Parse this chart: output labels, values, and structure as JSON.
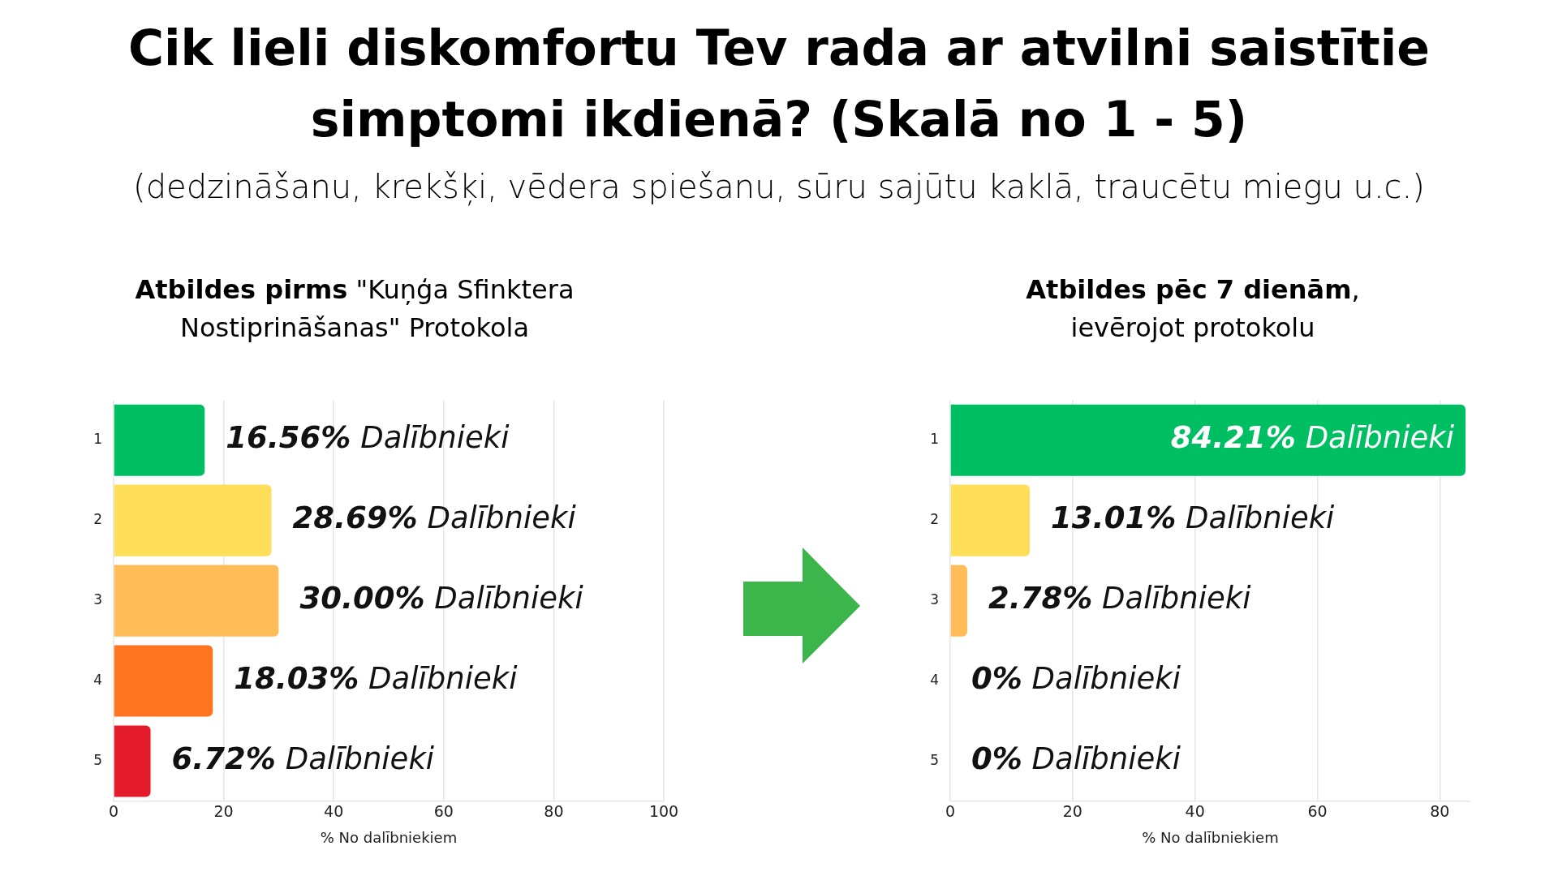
{
  "chart_data": [
    {
      "type": "bar",
      "orientation": "horizontal",
      "title": "Cik lieli diskomfortu Tev rada ar atvilni saistītie simptomi ikdienā? (Skalā no 1 - 5)",
      "subtitle": "(dedzināšanu, krekšķi, vēdera spiešanu, sūru sajūtu kaklā, traucētu miegu u.c.)",
      "annotations": [
        "Atbildes pirms",
        "\"Kuņģa Sfinktera",
        "Nostiprināšanas\" Protokola"
      ],
      "xlabel": "% No dalībniekiem",
      "categories": [
        "1",
        "2",
        "3",
        "4",
        "5"
      ],
      "values": [
        16.56,
        28.69,
        30.0,
        18.03,
        6.72
      ],
      "colors": [
        "#00bf63",
        "#ffde59",
        "#ffbd59",
        "#ff751f",
        "#e31b2b"
      ],
      "value_labels": [
        "16.56% Dalībnieki",
        "28.69% Dalībnieki",
        "30.00% Dalībnieki",
        "18.03% Dalībnieki",
        "6.72% Dalībnieki"
      ],
      "xlim": [
        0,
        100
      ],
      "xticks": [
        0,
        20,
        40,
        60,
        80,
        100
      ],
      "grid": "x"
    },
    {
      "type": "bar",
      "orientation": "horizontal",
      "annotations": [
        "Atbildes pēc 7 dienām",
        ",",
        "ievērojot protokolu"
      ],
      "xlabel": "% No dalībniekiem",
      "categories": [
        "1",
        "2",
        "3",
        "4",
        "5"
      ],
      "values": [
        84.21,
        13.01,
        2.78,
        0,
        0
      ],
      "colors": [
        "#00bf63",
        "#ffde59",
        "#ffbd59",
        "#ff751f",
        "#e31b2b"
      ],
      "value_labels": [
        "84.21% Dalībnieki",
        "13.01% Dalībnieki",
        "2.78% Dalībnieki",
        "0% Dalībnieki",
        "0% Dalībnieki"
      ],
      "xlim": [
        0,
        85
      ],
      "xticks": [
        0,
        20,
        40,
        60,
        80
      ],
      "grid": "x"
    }
  ]
}
